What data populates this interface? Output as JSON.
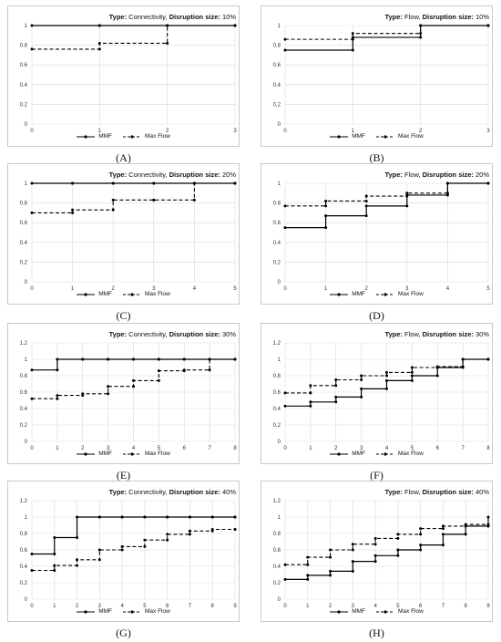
{
  "chart_data": [
    {
      "id": "A",
      "type": "line",
      "letter": "(A)",
      "title": {
        "bold1": "Type:",
        "text1": " Connectivity, ",
        "bold2": "Disruption size:",
        "text2": " 10%"
      },
      "ylim": [
        0,
        1
      ],
      "yticks": [
        "0",
        "0.2",
        "0.4",
        "0.6",
        "0.8",
        "1"
      ],
      "x": [
        0,
        1,
        2,
        3
      ],
      "xticks": [
        "0",
        "1",
        "2",
        "3"
      ],
      "series": [
        {
          "name": "MMF",
          "style": "solid",
          "values": [
            1,
            1,
            1,
            1
          ]
        },
        {
          "name": "Max Flow",
          "style": "dashed",
          "values": [
            0.76,
            0.82,
            1,
            1
          ]
        }
      ]
    },
    {
      "id": "B",
      "type": "line",
      "letter": "(B)",
      "title": {
        "bold1": "Type:",
        "text1": " Flow, ",
        "bold2": "Disruption size:",
        "text2": " 10%"
      },
      "ylim": [
        0,
        1
      ],
      "yticks": [
        "0",
        "0.2",
        "0.4",
        "0.6",
        "0.8",
        "1"
      ],
      "x": [
        0,
        1,
        2,
        3
      ],
      "xticks": [
        "0",
        "1",
        "2",
        "3"
      ],
      "series": [
        {
          "name": "MMF",
          "style": "solid",
          "values": [
            0.75,
            0.88,
            1,
            1
          ]
        },
        {
          "name": "Max Flow",
          "style": "dashed",
          "values": [
            0.86,
            0.92,
            1,
            1
          ]
        }
      ]
    },
    {
      "id": "C",
      "type": "line",
      "letter": "(C)",
      "title": {
        "bold1": "Type:",
        "text1": " Connectivity, ",
        "bold2": "Disruption size:",
        "text2": " 20%"
      },
      "ylim": [
        0,
        1
      ],
      "yticks": [
        "0",
        "0.2",
        "0.4",
        "0.6",
        "0.8",
        "1"
      ],
      "x": [
        0,
        1,
        2,
        3,
        4,
        5
      ],
      "xticks": [
        "0",
        "1",
        "2",
        "3",
        "4",
        "5"
      ],
      "series": [
        {
          "name": "MMF",
          "style": "solid",
          "values": [
            1,
            1,
            1,
            1,
            1,
            1
          ]
        },
        {
          "name": "Max Flow",
          "style": "dashed",
          "values": [
            0.7,
            0.73,
            0.83,
            0.83,
            1,
            1
          ]
        }
      ]
    },
    {
      "id": "D",
      "type": "line",
      "letter": "(D)",
      "title": {
        "bold1": "Type:",
        "text1": " Flow, ",
        "bold2": "Disruption size:",
        "text2": " 20%"
      },
      "ylim": [
        0,
        1
      ],
      "yticks": [
        "0",
        "0.2",
        "0.4",
        "0.6",
        "0.8",
        "1"
      ],
      "x": [
        0,
        1,
        2,
        3,
        4,
        5
      ],
      "xticks": [
        "0",
        "1",
        "2",
        "3",
        "4",
        "5"
      ],
      "series": [
        {
          "name": "MMF",
          "style": "solid",
          "values": [
            0.55,
            0.67,
            0.77,
            0.88,
            1,
            1
          ]
        },
        {
          "name": "Max Flow",
          "style": "dashed",
          "values": [
            0.77,
            0.82,
            0.87,
            0.9,
            1,
            1
          ]
        }
      ]
    },
    {
      "id": "E",
      "type": "line",
      "letter": "(E)",
      "title": {
        "bold1": "Type:",
        "text1": " Connectivity, ",
        "bold2": "Disruption size:",
        "text2": " 30%"
      },
      "ylim": [
        0,
        1.2
      ],
      "yticks": [
        "0",
        "0.2",
        "0.4",
        "0.6",
        "0.8",
        "1",
        "1.2"
      ],
      "x": [
        0,
        1,
        2,
        3,
        4,
        5,
        6,
        7,
        8
      ],
      "xticks": [
        "0",
        "1",
        "2",
        "3",
        "4",
        "5",
        "6",
        "7",
        "8"
      ],
      "series": [
        {
          "name": "MMF",
          "style": "solid",
          "values": [
            0.87,
            1,
            1,
            1,
            1,
            1,
            1,
            1,
            1
          ]
        },
        {
          "name": "Max Flow",
          "style": "dashed",
          "values": [
            0.52,
            0.56,
            0.58,
            0.67,
            0.74,
            0.86,
            0.87,
            1,
            1
          ]
        }
      ]
    },
    {
      "id": "F",
      "type": "line",
      "letter": "(F)",
      "title": {
        "bold1": "Type:",
        "text1": " Flow, ",
        "bold2": "Disruption size:",
        "text2": " 30%"
      },
      "ylim": [
        0,
        1.2
      ],
      "yticks": [
        "0",
        "0.2",
        "0.4",
        "0.6",
        "0.8",
        "1",
        "1.2"
      ],
      "x": [
        0,
        1,
        2,
        3,
        4,
        5,
        6,
        7,
        8
      ],
      "xticks": [
        "0",
        "1",
        "2",
        "3",
        "4",
        "5",
        "6",
        "7",
        "8"
      ],
      "series": [
        {
          "name": "MMF",
          "style": "solid",
          "values": [
            0.43,
            0.48,
            0.54,
            0.64,
            0.74,
            0.8,
            0.9,
            1,
            1
          ]
        },
        {
          "name": "Max Flow",
          "style": "dashed",
          "values": [
            0.59,
            0.68,
            0.75,
            0.8,
            0.84,
            0.9,
            0.91,
            1,
            1
          ]
        }
      ]
    },
    {
      "id": "G",
      "type": "line",
      "letter": "(G)",
      "title": {
        "bold1": "Type:",
        "text1": " Connectivity, ",
        "bold2": "Disruption size:",
        "text2": " 40%"
      },
      "ylim": [
        0,
        1.2
      ],
      "yticks": [
        "0",
        "0.2",
        "0.4",
        "0.6",
        "0.8",
        "1",
        "1.2"
      ],
      "x": [
        0,
        1,
        2,
        3,
        4,
        5,
        6,
        7,
        8,
        9
      ],
      "xticks": [
        "0",
        "1",
        "2",
        "3",
        "4",
        "5",
        "6",
        "7",
        "8",
        "9"
      ],
      "series": [
        {
          "name": "MMF",
          "style": "solid",
          "values": [
            0.55,
            0.75,
            1,
            1,
            1,
            1,
            1,
            1,
            1,
            1
          ]
        },
        {
          "name": "Max Flow",
          "style": "dashed",
          "values": [
            0.35,
            0.41,
            0.48,
            0.6,
            0.64,
            0.72,
            0.79,
            0.83,
            0.85,
            0.85
          ]
        }
      ]
    },
    {
      "id": "H",
      "type": "line",
      "letter": "(H)",
      "title": {
        "bold1": "Type:",
        "text1": " Flow, ",
        "bold2": "Disruption size:",
        "text2": " 40%"
      },
      "ylim": [
        0,
        1.2
      ],
      "yticks": [
        "0",
        "0.2",
        "0.4",
        "0.6",
        "0.8",
        "1",
        "1.2"
      ],
      "x": [
        0,
        1,
        2,
        3,
        4,
        5,
        6,
        7,
        8,
        9
      ],
      "xticks": [
        "0",
        "1",
        "2",
        "3",
        "4",
        "5",
        "6",
        "7",
        "8",
        "9"
      ],
      "series": [
        {
          "name": "MMF",
          "style": "solid",
          "values": [
            0.24,
            0.29,
            0.34,
            0.46,
            0.53,
            0.6,
            0.66,
            0.79,
            0.89,
            1
          ]
        },
        {
          "name": "Max Flow",
          "style": "dashed",
          "values": [
            0.42,
            0.51,
            0.6,
            0.67,
            0.74,
            0.79,
            0.86,
            0.89,
            0.91,
            0.89
          ]
        }
      ]
    }
  ],
  "legend": {
    "mmf": "MMF",
    "maxflow": "Max Flow"
  },
  "colors": {
    "line": "#000000",
    "grid": "#d9d9d9",
    "frame": "#c9c9c9",
    "text": "#555555"
  }
}
